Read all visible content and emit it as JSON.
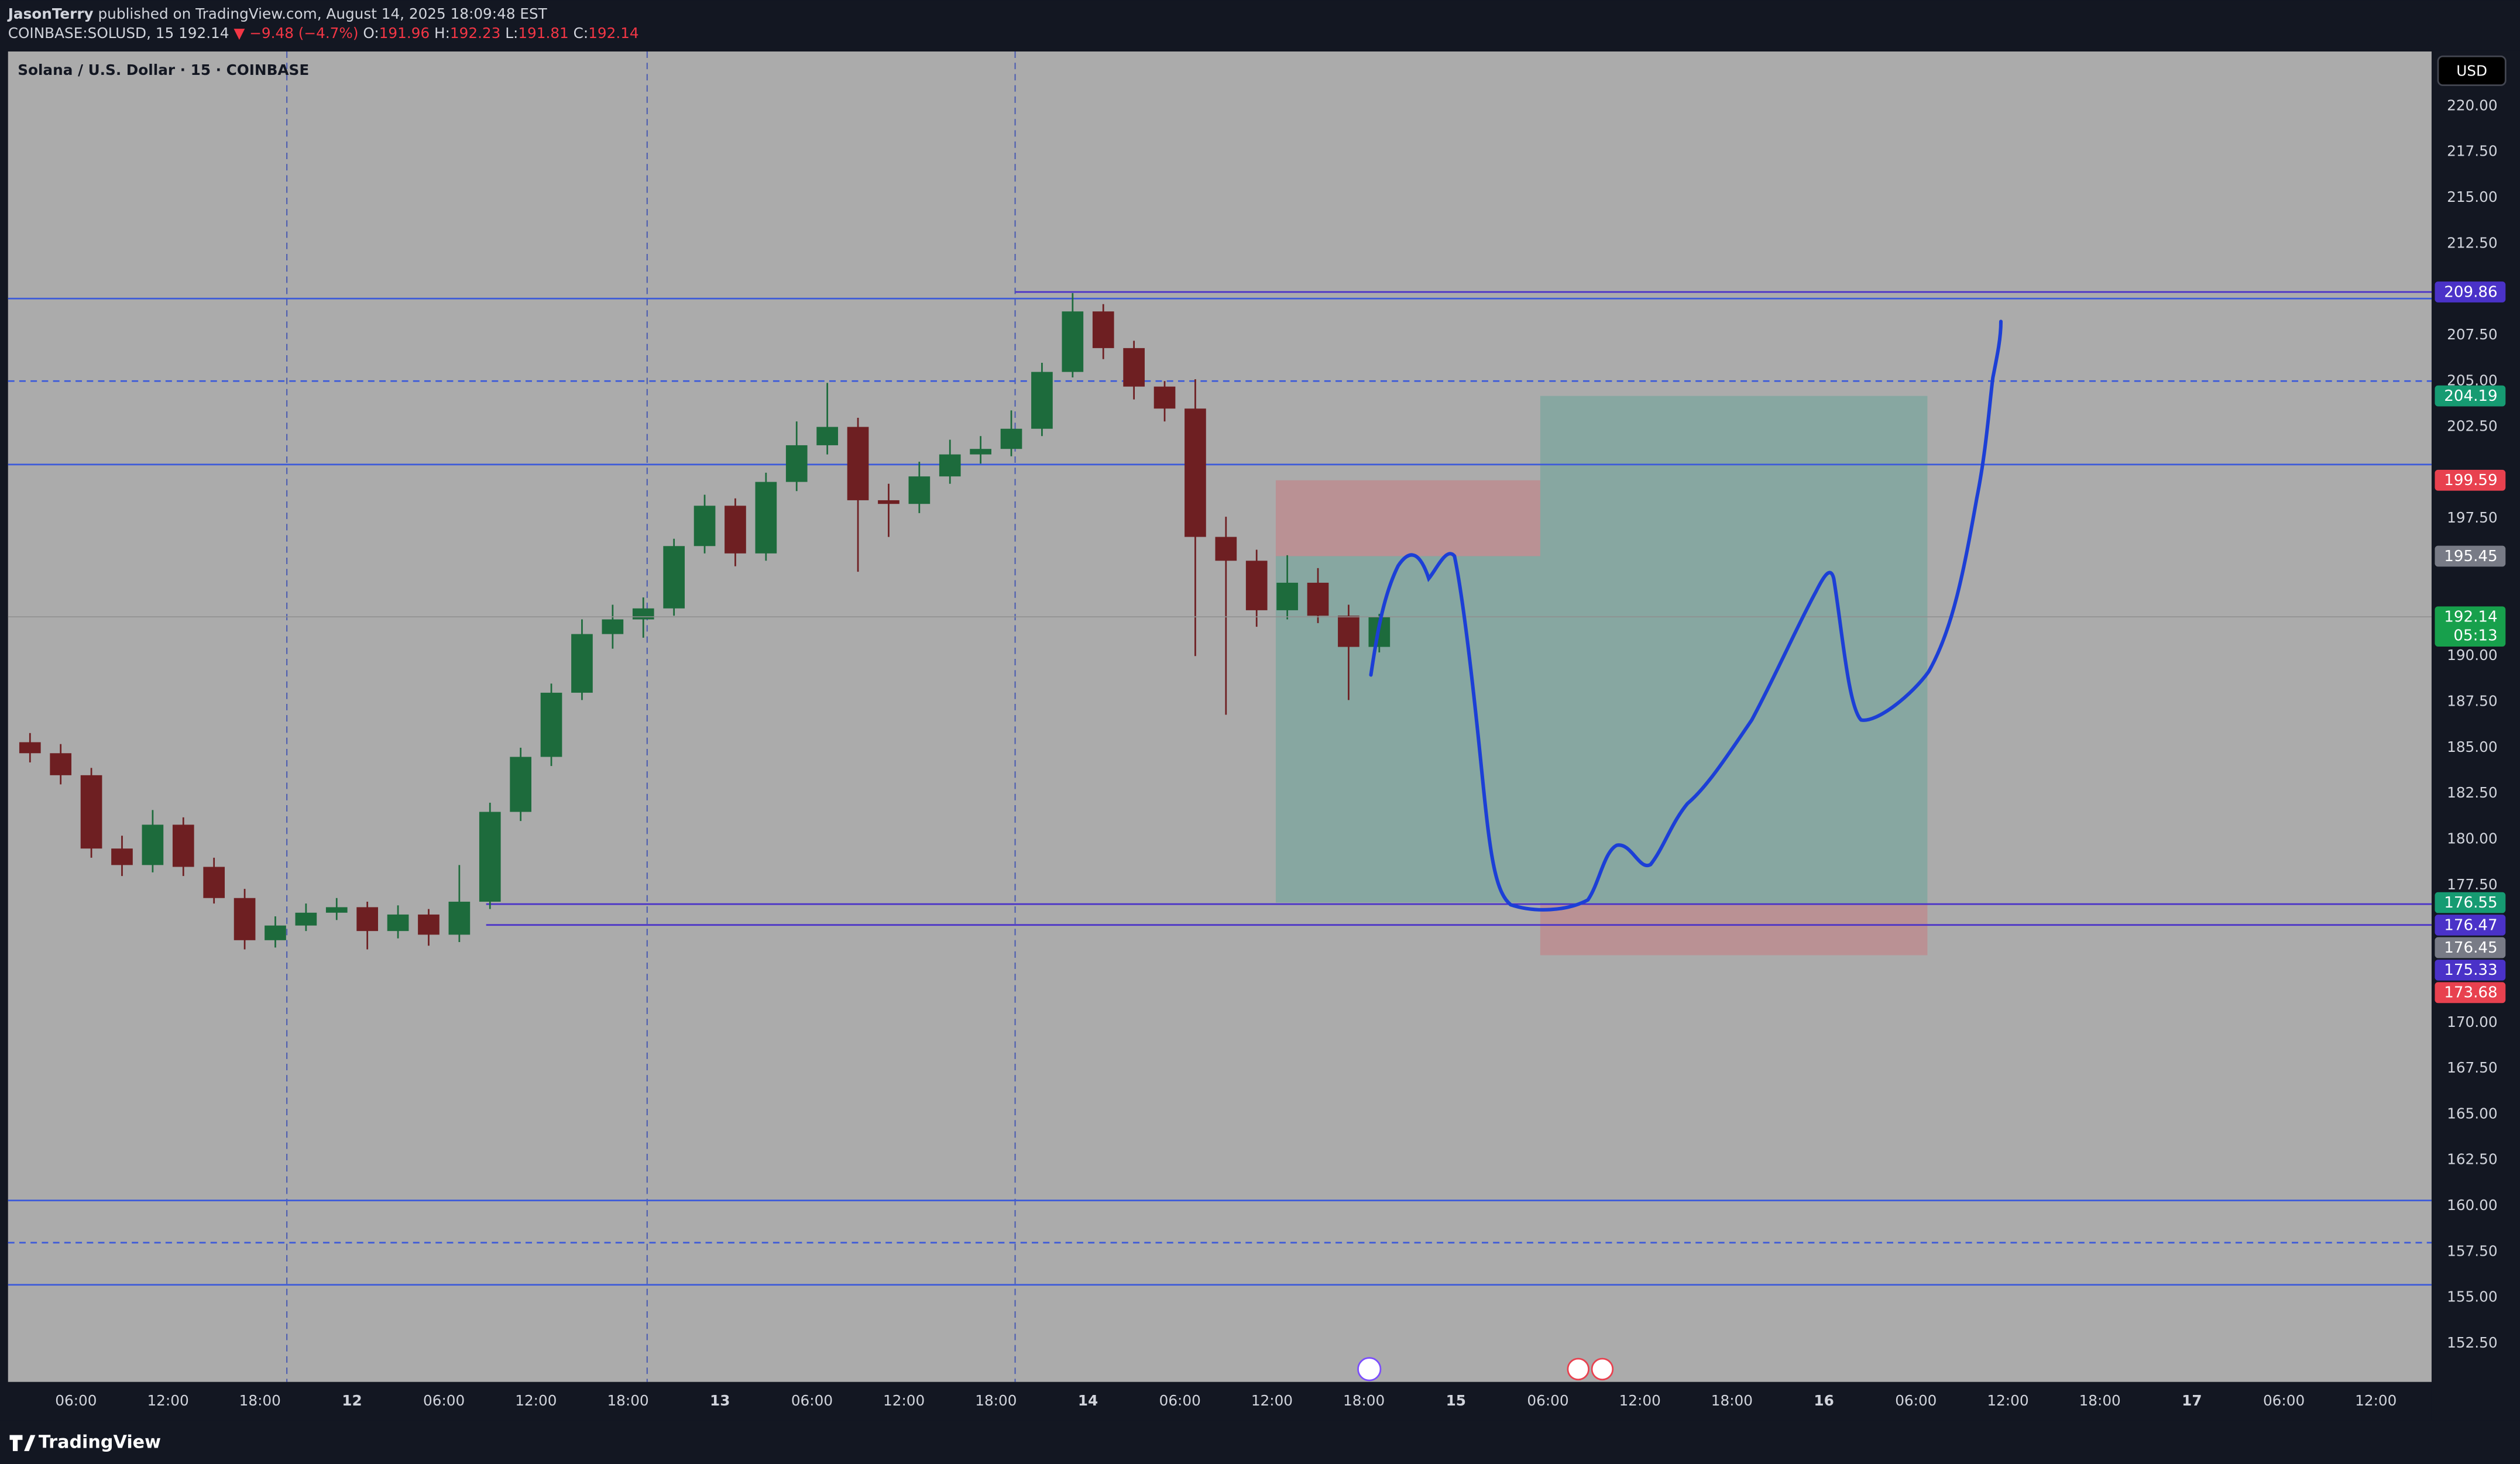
{
  "header": {
    "author": "JasonTerry",
    "published": "published on TradingView.com, August 14, 2025 18:09:48 EST",
    "symbol": "COINBASE:SOLUSD, 15",
    "last": "192.14",
    "change": "▼ −9.48 (−4.7%)",
    "o_label": "O:",
    "o": "191.96",
    "h_label": "H:",
    "h": "192.23",
    "l_label": "L:",
    "l": "191.81",
    "c_label": "C:",
    "c": "192.14"
  },
  "footer": {
    "brand": "TradingView"
  },
  "chart_data": {
    "type": "candlestick",
    "title": "Solana / U.S. Dollar · 15 · COINBASE",
    "currency": "USD",
    "x": [
      "2025-08-11T02:00",
      "2025-08-11T04:00",
      "2025-08-11T06:00",
      "2025-08-11T08:00",
      "2025-08-11T10:00",
      "2025-08-11T12:00",
      "2025-08-11T14:00",
      "2025-08-11T16:00",
      "2025-08-11T18:00",
      "2025-08-11T20:00",
      "2025-08-11T22:00",
      "2025-08-12T00:00",
      "2025-08-12T02:00",
      "2025-08-12T04:00",
      "2025-08-12T06:00",
      "2025-08-12T08:00",
      "2025-08-12T10:00",
      "2025-08-12T12:00",
      "2025-08-12T14:00",
      "2025-08-12T16:00",
      "2025-08-12T18:00",
      "2025-08-12T20:00",
      "2025-08-12T22:00",
      "2025-08-13T00:00",
      "2025-08-13T02:00",
      "2025-08-13T04:00",
      "2025-08-13T06:00",
      "2025-08-13T08:00",
      "2025-08-13T10:00",
      "2025-08-13T12:00",
      "2025-08-13T14:00",
      "2025-08-13T16:00",
      "2025-08-13T18:00",
      "2025-08-13T20:00",
      "2025-08-13T22:00",
      "2025-08-14T00:00",
      "2025-08-14T02:00",
      "2025-08-14T04:00",
      "2025-08-14T06:00",
      "2025-08-14T08:00",
      "2025-08-14T10:00",
      "2025-08-14T12:00",
      "2025-08-14T14:00",
      "2025-08-14T16:00",
      "2025-08-14T18:00"
    ],
    "open": [
      185.3,
      184.7,
      183.5,
      179.5,
      178.6,
      180.8,
      178.5,
      176.8,
      174.5,
      175.3,
      176.0,
      176.3,
      175.0,
      175.9,
      174.8,
      176.6,
      181.5,
      184.5,
      188.0,
      191.2,
      192.0,
      192.6,
      196.0,
      198.2,
      195.6,
      199.5,
      201.5,
      202.5,
      198.5,
      198.3,
      199.8,
      201.0,
      201.3,
      202.4,
      205.5,
      208.8,
      206.8,
      204.7,
      203.5,
      196.5,
      195.2,
      192.5,
      194.0,
      192.2,
      190.5
    ],
    "high": [
      185.8,
      185.2,
      183.9,
      180.2,
      181.6,
      181.2,
      179.0,
      177.3,
      175.8,
      176.5,
      176.8,
      176.6,
      176.4,
      176.2,
      178.6,
      182.0,
      185.0,
      188.5,
      192.0,
      192.8,
      193.2,
      196.4,
      198.8,
      198.6,
      200.0,
      202.8,
      204.9,
      203.0,
      199.4,
      200.6,
      201.8,
      202.0,
      203.4,
      206.0,
      209.8,
      209.2,
      207.2,
      205.0,
      205.1,
      197.6,
      195.8,
      195.5,
      194.8,
      192.8,
      192.3
    ],
    "low": [
      184.2,
      183.0,
      179.0,
      178.0,
      178.2,
      178.0,
      176.5,
      174.0,
      174.1,
      175.0,
      175.6,
      174.0,
      174.6,
      174.2,
      174.4,
      176.2,
      181.0,
      184.0,
      187.6,
      190.4,
      191.0,
      192.2,
      195.6,
      194.9,
      195.2,
      199.0,
      201.0,
      194.6,
      196.5,
      197.8,
      199.4,
      200.5,
      200.9,
      202.0,
      205.2,
      206.2,
      204.0,
      202.8,
      190.0,
      186.8,
      191.6,
      192.0,
      191.8,
      187.6,
      190.2
    ],
    "close": [
      184.7,
      183.5,
      179.5,
      178.6,
      180.8,
      178.5,
      176.8,
      174.5,
      175.3,
      176.0,
      176.3,
      175.0,
      175.9,
      174.8,
      176.6,
      181.5,
      184.5,
      188.0,
      191.2,
      192.0,
      192.6,
      196.0,
      198.2,
      195.6,
      199.5,
      201.5,
      202.5,
      198.5,
      198.3,
      199.8,
      201.0,
      201.3,
      202.4,
      205.5,
      208.8,
      206.8,
      204.7,
      203.5,
      196.5,
      195.2,
      192.5,
      194.0,
      192.2,
      190.5,
      192.14
    ],
    "up_color": "#1d6b3c",
    "down_color": "#6e1f22",
    "xlim": [
      "2025-08-11T01:34",
      "2025-08-17T15:38"
    ],
    "ylim": [
      150.4,
      222.98
    ],
    "xticks": [
      {
        "value": "2025-08-11T06:00",
        "label": "06:00"
      },
      {
        "value": "2025-08-11T12:00",
        "label": "12:00"
      },
      {
        "value": "2025-08-11T18:00",
        "label": "18:00"
      },
      {
        "value": "2025-08-12T00:00",
        "label": "12"
      },
      {
        "value": "2025-08-12T06:00",
        "label": "06:00"
      },
      {
        "value": "2025-08-12T12:00",
        "label": "12:00"
      },
      {
        "value": "2025-08-12T18:00",
        "label": "18:00"
      },
      {
        "value": "2025-08-13T00:00",
        "label": "13"
      },
      {
        "value": "2025-08-13T06:00",
        "label": "06:00"
      },
      {
        "value": "2025-08-13T12:00",
        "label": "12:00"
      },
      {
        "value": "2025-08-13T18:00",
        "label": "18:00"
      },
      {
        "value": "2025-08-14T00:00",
        "label": "14"
      },
      {
        "value": "2025-08-14T06:00",
        "label": "06:00"
      },
      {
        "value": "2025-08-14T12:00",
        "label": "12:00"
      },
      {
        "value": "2025-08-14T18:00",
        "label": "18:00"
      },
      {
        "value": "2025-08-15T00:00",
        "label": "15"
      },
      {
        "value": "2025-08-15T06:00",
        "label": "06:00"
      },
      {
        "value": "2025-08-15T12:00",
        "label": "12:00"
      },
      {
        "value": "2025-08-15T18:00",
        "label": "18:00"
      },
      {
        "value": "2025-08-16T00:00",
        "label": "16"
      },
      {
        "value": "2025-08-16T06:00",
        "label": "06:00"
      },
      {
        "value": "2025-08-16T12:00",
        "label": "12:00"
      },
      {
        "value": "2025-08-16T18:00",
        "label": "18:00"
      },
      {
        "value": "2025-08-17T00:00",
        "label": "17"
      },
      {
        "value": "2025-08-17T06:00",
        "label": "06:00"
      },
      {
        "value": "2025-08-17T12:00",
        "label": "12:00"
      }
    ],
    "yticks": [
      {
        "value": 220,
        "label": "220.00"
      },
      {
        "value": 217.5,
        "label": "217.50"
      },
      {
        "value": 215,
        "label": "215.00"
      },
      {
        "value": 212.5,
        "label": "212.50"
      },
      {
        "value": 207.5,
        "label": "207.50"
      },
      {
        "value": 205,
        "label": "205.00"
      },
      {
        "value": 202.5,
        "label": "202.50"
      },
      {
        "value": 197.5,
        "label": "197.50"
      },
      {
        "value": 190,
        "label": "190.00"
      },
      {
        "value": 187.5,
        "label": "187.50"
      },
      {
        "value": 185,
        "label": "185.00"
      },
      {
        "value": 182.5,
        "label": "182.50"
      },
      {
        "value": 180,
        "label": "180.00"
      },
      {
        "value": 177.5,
        "label": "177.50"
      },
      {
        "value": 170,
        "label": "170.00"
      },
      {
        "value": 167.5,
        "label": "167.50"
      },
      {
        "value": 165,
        "label": "165.00"
      },
      {
        "value": 162.5,
        "label": "162.50"
      },
      {
        "value": 160,
        "label": "160.00"
      },
      {
        "value": 157.5,
        "label": "157.50"
      },
      {
        "value": 155,
        "label": "155.00"
      },
      {
        "value": 152.5,
        "label": "152.50"
      }
    ],
    "session_breaks": [
      "2025-08-11T19:45",
      "2025-08-12T19:15",
      "2025-08-13T19:15"
    ],
    "levels": [
      {
        "price": 209.5,
        "style": "solid",
        "color": "#3d5bd9"
      },
      {
        "price": 209.86,
        "style": "solid",
        "color": "#4a32c8",
        "from": "2025-08-13T19:15"
      },
      {
        "price": 205.0,
        "style": "dashed",
        "color": "#3d5bd9"
      },
      {
        "price": 200.45,
        "style": "solid",
        "color": "#3d5bd9"
      },
      {
        "price": 176.47,
        "style": "solid",
        "color": "#4a32c8",
        "from": "2025-08-12T08:45"
      },
      {
        "price": 175.33,
        "style": "solid",
        "color": "#4a32c8",
        "from": "2025-08-12T08:45"
      },
      {
        "price": 160.3,
        "style": "solid",
        "color": "#3d5bd9"
      },
      {
        "price": 158.0,
        "style": "dashed",
        "color": "#3d5bd9"
      },
      {
        "price": 155.7,
        "style": "solid",
        "color": "#3d5bd9"
      }
    ],
    "positions": [
      {
        "entry": 195.45,
        "stop": 199.59,
        "target": 176.55,
        "start": "2025-08-14T12:15",
        "end": "2025-08-15T05:30"
      },
      {
        "entry": 176.45,
        "stop": 173.68,
        "target": 204.19,
        "start": "2025-08-15T05:30",
        "end": "2025-08-16T06:45"
      }
    ],
    "price_tags": [
      {
        "value": 209.86,
        "color": "#4a32c8"
      },
      {
        "value": 204.19,
        "color": "#169b72"
      },
      {
        "value": 199.59,
        "color": "#e8414f"
      },
      {
        "value": 195.45,
        "color": "#787b86"
      },
      {
        "value": 192.14,
        "color": "#17a04c",
        "countdown": "05:13"
      },
      {
        "value": 176.55,
        "color": "#169b72"
      },
      {
        "value": 176.47,
        "color": "#4a32c8"
      },
      {
        "value": 176.45,
        "color": "#787b86"
      },
      {
        "value": 175.33,
        "color": "#4a32c8"
      },
      {
        "value": 173.68,
        "color": "#e8414f"
      }
    ]
  }
}
